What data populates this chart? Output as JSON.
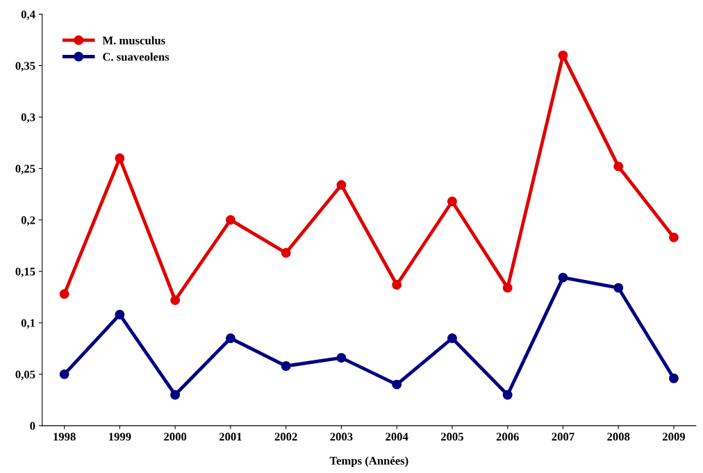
{
  "chart_data": {
    "type": "line",
    "xlabel": "Temps (Années)",
    "categories": [
      "1998",
      "1999",
      "2000",
      "2001",
      "2002",
      "2003",
      "2004",
      "2005",
      "2006",
      "2007",
      "2008",
      "2009"
    ],
    "series": [
      {
        "name": "M. musculus",
        "color": "#e00000",
        "values": [
          0.128,
          0.26,
          0.122,
          0.2,
          0.168,
          0.234,
          0.137,
          0.218,
          0.134,
          0.36,
          0.252,
          0.183
        ]
      },
      {
        "name": "C. suaveolens",
        "color": "#000080",
        "values": [
          0.05,
          0.108,
          0.03,
          0.085,
          0.058,
          0.066,
          0.04,
          0.085,
          0.03,
          0.144,
          0.134,
          0.046
        ]
      }
    ],
    "ylim": [
      0,
      0.4
    ],
    "yticks": [
      {
        "value": 0,
        "label": "0"
      },
      {
        "value": 0.05,
        "label": "0,05"
      },
      {
        "value": 0.1,
        "label": "0,1"
      },
      {
        "value": 0.15,
        "label": "0,15"
      },
      {
        "value": 0.2,
        "label": "0,2"
      },
      {
        "value": 0.25,
        "label": "0,25"
      },
      {
        "value": 0.3,
        "label": "0,3"
      },
      {
        "value": 0.35,
        "label": "0,35"
      },
      {
        "value": 0.4,
        "label": "0,4"
      }
    ],
    "grid": false,
    "legend": "top left",
    "marker": "circle",
    "line_style": "solid"
  }
}
